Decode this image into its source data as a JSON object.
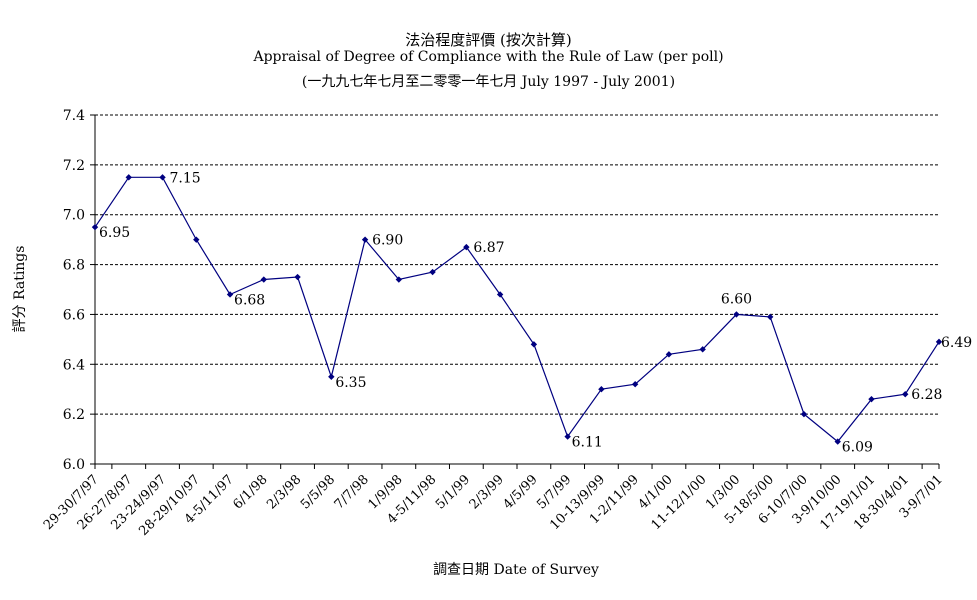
{
  "chart_data": {
    "type": "line",
    "title": "法治程度評價 (按次計算)",
    "subtitle": "Appraisal of Degree of Compliance with the Rule of Law (per poll)",
    "subtitle2": "(一九九七年七月至二零零一年七月 July 1997 - July 2001)",
    "xlabel": "調查日期 Date of Survey",
    "ylabel": "評分 Ratings",
    "ylim": [
      6.0,
      7.4
    ],
    "yticks": [
      "6.0",
      "6.2",
      "6.4",
      "6.6",
      "6.8",
      "7.0",
      "7.2",
      "7.4"
    ],
    "grid": true,
    "line_color": "#000080",
    "categories": [
      "29-30/7/97",
      "26-27/8/97",
      "23-24/9/97",
      "28-29/10/97",
      "4-5/11/97",
      "6/1/98",
      "2/3/98",
      "5/5/98",
      "7/7/98",
      "1/9/98",
      "4-5/11/98",
      "5/1/99",
      "2/3/99",
      "4/5/99",
      "5/7/99",
      "10-13/9/99",
      "1-2/11/99",
      "4/1/00",
      "11-12/1/00",
      "1/3/00",
      "5-18/5/00",
      "6-10/7/00",
      "3-9/10/00",
      "17-19/1/01",
      "18-30/4/01",
      "3-9/7/01"
    ],
    "values": [
      6.95,
      7.15,
      7.15,
      6.9,
      6.68,
      6.74,
      6.75,
      6.35,
      6.9,
      6.74,
      6.77,
      6.87,
      6.68,
      6.48,
      6.11,
      6.3,
      6.32,
      6.44,
      6.46,
      6.6,
      6.59,
      6.2,
      6.09,
      6.26,
      6.28,
      6.49
    ],
    "data_labels": [
      {
        "index": 0,
        "text": "6.95"
      },
      {
        "index": 2,
        "text": "7.15"
      },
      {
        "index": 4,
        "text": "6.68"
      },
      {
        "index": 7,
        "text": "6.35"
      },
      {
        "index": 8,
        "text": "6.90"
      },
      {
        "index": 11,
        "text": "6.87"
      },
      {
        "index": 14,
        "text": "6.11"
      },
      {
        "index": 19,
        "text": "6.60"
      },
      {
        "index": 22,
        "text": "6.09"
      },
      {
        "index": 24,
        "text": "6.28"
      },
      {
        "index": 25,
        "text": "6.49"
      }
    ]
  }
}
